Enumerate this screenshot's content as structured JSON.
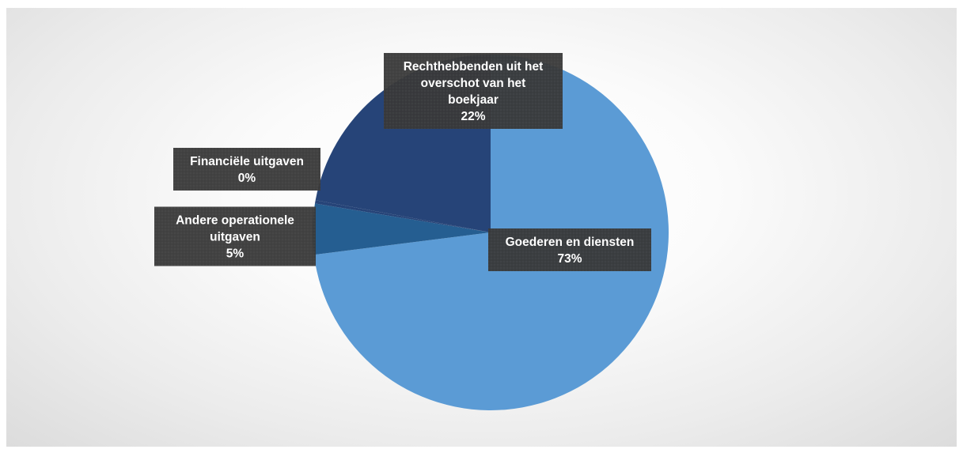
{
  "chart_data": {
    "type": "pie",
    "slices": [
      {
        "label_lines": [
          "Goederen en diensten"
        ],
        "percent_label": "73%",
        "value": 73,
        "color": "#5b9bd5"
      },
      {
        "label_lines": [
          "Andere operationele",
          "uitgaven"
        ],
        "percent_label": "5%",
        "value": 4.6,
        "color": "#255e91"
      },
      {
        "label_lines": [
          "Financiële uitgaven"
        ],
        "percent_label": "0%",
        "value": 0.3,
        "color": "#264478"
      },
      {
        "label_lines": [
          "Rechthebbenden uit het",
          "overschot van het",
          "boekjaar"
        ],
        "percent_label": "22%",
        "value": 22.1,
        "color": "#264478"
      }
    ],
    "start_angle_deg": 0,
    "direction": "clockwise",
    "legend": "none",
    "label_box_color": "#3a3a3a",
    "label_text_color": "#ffffff"
  }
}
